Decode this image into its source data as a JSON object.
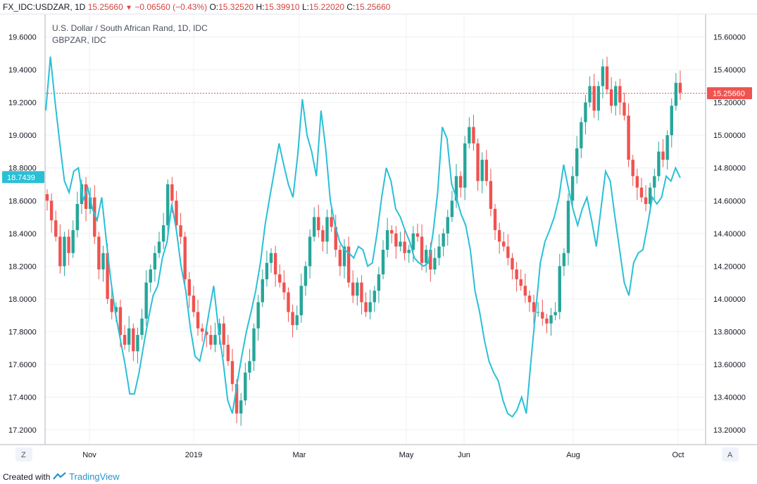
{
  "header": {
    "symbol": "FX_IDC:USDZAR, 1D",
    "last": "15.25660",
    "change": "−0.06560 (−0.43%)",
    "o_label": "O:",
    "o": "15.32520",
    "h_label": "H:",
    "h": "15.39910",
    "l_label": "L:",
    "l": "15.22020",
    "c_label": "C:",
    "c": "15.25660"
  },
  "footer": {
    "created_with": "Created with",
    "brand": "TradingView"
  },
  "buttons": {
    "left": "Z",
    "right": "A"
  },
  "colors": {
    "up": "#26a69a",
    "down": "#ef5350",
    "compare": "#29c0d6",
    "price_tag": "#ef5350",
    "left_tag": "#29c0d6"
  },
  "chart_data": {
    "type": "line",
    "title": "U.S. Dollar / South African Rand, 1D, IDC",
    "legend": [
      "U.S. Dollar / South African Rand, 1D, IDC",
      "GBPZAR, IDC"
    ],
    "x_tick_labels": [
      "Nov",
      "2019",
      "Mar",
      "May",
      "Jun",
      "Aug",
      "Oct"
    ],
    "left_axis": {
      "ticks": [
        "19.6000",
        "19.4000",
        "19.2000",
        "19.0000",
        "18.8000",
        "18.6000",
        "18.4000",
        "18.2000",
        "18.0000",
        "17.8000",
        "17.6000",
        "17.4000",
        "17.2000"
      ],
      "range": [
        17.11,
        19.74
      ],
      "current_tag": "18.7439",
      "current_value": 18.7439
    },
    "right_axis": {
      "ticks": [
        "15.60000",
        "15.40000",
        "15.20000",
        "15.00000",
        "14.80000",
        "14.60000",
        "14.40000",
        "14.20000",
        "14.00000",
        "13.80000",
        "13.60000",
        "13.40000",
        "13.20000"
      ],
      "range": [
        13.11,
        15.74
      ],
      "current_tag": "15.25660",
      "current_value": 15.2566
    },
    "grid": true,
    "series": [
      {
        "name": "USDZAR",
        "kind": "candlestick",
        "axis": "right",
        "close": [
          14.6,
          14.48,
          14.38,
          14.2,
          14.38,
          14.28,
          14.42,
          14.58,
          14.7,
          14.55,
          14.62,
          14.38,
          14.18,
          14.28,
          14.0,
          13.92,
          13.95,
          13.78,
          13.72,
          13.82,
          13.68,
          13.78,
          13.88,
          14.1,
          14.18,
          14.28,
          14.35,
          14.45,
          14.7,
          14.6,
          14.45,
          14.38,
          14.12,
          14.02,
          13.92,
          13.82,
          13.8,
          13.78,
          13.72,
          13.78,
          13.85,
          13.72,
          13.62,
          13.48,
          13.3,
          13.38,
          13.55,
          13.62,
          13.82,
          13.98,
          14.12,
          14.22,
          14.28,
          14.15,
          14.1,
          14.04,
          13.92,
          13.84,
          13.9,
          14.08,
          14.2,
          14.38,
          14.5,
          14.42,
          14.35,
          14.5,
          14.44,
          14.3,
          14.2,
          14.32,
          14.1,
          14.02,
          14.1,
          13.98,
          13.92,
          13.98,
          14.05,
          14.15,
          14.3,
          14.42,
          14.4,
          14.32,
          14.35,
          14.28,
          14.3,
          14.4,
          14.38,
          14.22,
          14.3,
          14.18,
          14.25,
          14.32,
          14.4,
          14.5,
          14.6,
          14.75,
          14.68,
          14.95,
          15.05,
          14.95,
          14.72,
          14.85,
          14.72,
          14.55,
          14.42,
          14.35,
          14.32,
          14.25,
          14.18,
          14.12,
          14.08,
          14.02,
          13.98,
          13.92,
          13.92,
          13.88,
          13.85,
          13.9,
          13.92,
          14.2,
          14.28,
          14.6,
          14.75,
          14.92,
          15.08,
          15.2,
          15.3,
          15.15,
          15.3,
          15.42,
          15.28,
          15.18,
          15.3,
          15.2,
          15.12,
          14.85,
          14.75,
          14.68,
          14.62,
          14.58,
          14.68,
          14.75,
          14.9,
          14.85,
          15.0,
          15.18,
          15.32,
          15.26
        ]
      },
      {
        "name": "GBPZAR",
        "kind": "line",
        "axis": "left",
        "values": [
          19.15,
          19.48,
          19.2,
          18.95,
          18.72,
          18.65,
          18.78,
          18.8,
          18.6,
          18.68,
          18.55,
          18.48,
          18.62,
          18.35,
          18.1,
          17.9,
          17.75,
          17.6,
          17.42,
          17.42,
          17.55,
          17.72,
          17.88,
          18.02,
          18.08,
          18.25,
          18.35,
          18.58,
          18.42,
          18.2,
          18.05,
          17.82,
          17.65,
          17.62,
          17.75,
          17.92,
          18.08,
          17.82,
          17.62,
          17.38,
          17.3,
          17.48,
          17.65,
          17.8,
          17.92,
          18.05,
          18.22,
          18.45,
          18.62,
          18.78,
          18.95,
          18.82,
          18.7,
          18.62,
          18.88,
          19.22,
          19.0,
          18.9,
          18.75,
          19.15,
          18.92,
          18.6,
          18.45,
          18.35,
          18.3,
          18.28,
          18.25,
          18.32,
          18.3,
          18.2,
          18.22,
          18.4,
          18.62,
          18.8,
          18.72,
          18.55,
          18.5,
          18.42,
          18.35,
          18.25,
          18.22,
          18.2,
          18.22,
          18.4,
          18.65,
          19.05,
          18.98,
          18.7,
          18.62,
          18.52,
          18.45,
          18.3,
          18.05,
          17.92,
          17.75,
          17.62,
          17.55,
          17.5,
          17.38,
          17.3,
          17.28,
          17.32,
          17.4,
          17.3,
          17.62,
          17.92,
          18.22,
          18.35,
          18.42,
          18.5,
          18.62,
          18.82,
          18.68,
          18.55,
          18.45,
          18.55,
          18.62,
          18.48,
          18.32,
          18.55,
          18.78,
          18.72,
          18.5,
          18.3,
          18.1,
          18.02,
          18.22,
          18.28,
          18.3,
          18.45,
          18.62,
          18.58,
          18.62,
          18.75,
          18.72,
          18.8,
          18.74
        ]
      }
    ]
  }
}
